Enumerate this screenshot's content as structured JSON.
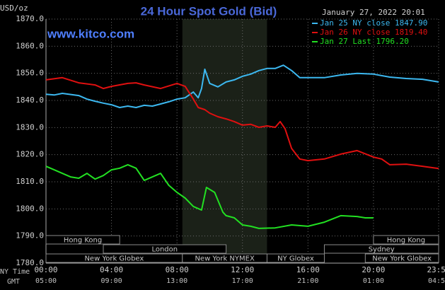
{
  "chart_data": {
    "type": "line",
    "title": "24 Hour Spot Gold (Bid)",
    "y_label": "USD/oz",
    "site": "www.kitco.com",
    "timestamp": "January 27, 2022 20:01",
    "x_label": "NY Time",
    "x2_label": "GMT",
    "xlim": [
      0,
      23.98
    ],
    "xticks": [
      {
        "value": 0,
        "label": "00:00"
      },
      {
        "value": 4,
        "label": "04:00"
      },
      {
        "value": 8,
        "label": "08:00"
      },
      {
        "value": 12,
        "label": "12:00"
      },
      {
        "value": 16,
        "label": "16:00"
      },
      {
        "value": 20,
        "label": "20:00"
      },
      {
        "value": 23.98,
        "label": "23:59"
      }
    ],
    "x2ticks": [
      {
        "value": 0,
        "label": "05:00"
      },
      {
        "value": 4,
        "label": "09:00"
      },
      {
        "value": 8,
        "label": "13:00"
      },
      {
        "value": 12,
        "label": "17:00"
      },
      {
        "value": 16,
        "label": "21:00"
      },
      {
        "value": 20,
        "label": "01:00"
      },
      {
        "value": 23.98,
        "label": "04:59"
      }
    ],
    "ylim": [
      1780,
      1870
    ],
    "yticks": [
      {
        "value": 1780,
        "label": "1780.0"
      },
      {
        "value": 1790,
        "label": "1790.0"
      },
      {
        "value": 1800,
        "label": "1800.0"
      },
      {
        "value": 1810,
        "label": "1810.0"
      },
      {
        "value": 1820,
        "label": "1820.0"
      },
      {
        "value": 1830,
        "label": "1830.0"
      },
      {
        "value": 1840,
        "label": "1840.0"
      },
      {
        "value": 1850,
        "label": "1850.0"
      },
      {
        "value": 1860,
        "label": "1860.0"
      },
      {
        "value": 1870,
        "label": "1870.0"
      }
    ],
    "grid": true,
    "legend": "top-right",
    "series": [
      {
        "name": "Jan 25 NY close 1847.90",
        "color": "#3cb8f0",
        "x": [
          0,
          0.5,
          1,
          2,
          2.5,
          3,
          3.5,
          4,
          4.5,
          5,
          5.5,
          6,
          6.5,
          7,
          7.5,
          8,
          8.5,
          9,
          9.3,
          9.5,
          9.7,
          10,
          10.5,
          11,
          11.5,
          12,
          12.5,
          13,
          13.5,
          14,
          14.5,
          15,
          15.5,
          16,
          17,
          18,
          19,
          20,
          21,
          22,
          23,
          23.98
        ],
        "values": [
          1842.3,
          1842,
          1842.6,
          1841.8,
          1840.5,
          1839.7,
          1839,
          1838.4,
          1837.4,
          1837.9,
          1837.4,
          1838.2,
          1837.9,
          1838.7,
          1839.5,
          1840.5,
          1841,
          1843.1,
          1841,
          1844.4,
          1851.5,
          1846.3,
          1845,
          1846.8,
          1847.6,
          1848.9,
          1849.7,
          1851,
          1851.8,
          1851.8,
          1853,
          1851,
          1848.4,
          1848.4,
          1848.4,
          1849.4,
          1850,
          1849.7,
          1848.6,
          1848.1,
          1847.8,
          1846.8
        ]
      },
      {
        "name": "Jan 26 NY close 1819.40",
        "color": "#e01010",
        "x": [
          0,
          1,
          2,
          3,
          3.5,
          4,
          5,
          5.5,
          6,
          7,
          8,
          8.5,
          9,
          9.3,
          9.7,
          10,
          10.5,
          11,
          11.5,
          12,
          12.5,
          13,
          13.5,
          14,
          14.3,
          14.6,
          15,
          15.5,
          16,
          17,
          18,
          19,
          20,
          20.5,
          21,
          22,
          23,
          23.98
        ],
        "values": [
          1847.6,
          1848.4,
          1846.5,
          1845.7,
          1844.4,
          1845.2,
          1846.3,
          1846.5,
          1845.7,
          1844.4,
          1846.3,
          1845.2,
          1840.5,
          1837.4,
          1836.6,
          1835.3,
          1834,
          1833.2,
          1832.2,
          1830.9,
          1831.2,
          1830.1,
          1830.6,
          1830.1,
          1832.2,
          1829.6,
          1822.3,
          1818.4,
          1817.8,
          1818.4,
          1820.2,
          1821.5,
          1819.1,
          1818.4,
          1816.3,
          1816.5,
          1815.7,
          1814.9
        ]
      },
      {
        "name": "Jan 27 Last 1796.20",
        "color": "#22e022",
        "x": [
          0,
          0.5,
          1,
          1.5,
          2,
          2.5,
          3,
          3.5,
          4,
          4.5,
          5,
          5.5,
          6,
          6.5,
          7,
          7.5,
          8,
          8.5,
          9,
          9.5,
          9.8,
          10.3,
          10.8,
          11,
          11.5,
          12,
          12.5,
          13,
          14,
          15,
          16,
          17,
          18,
          19,
          19.5,
          20
        ],
        "values": [
          1815.7,
          1814.4,
          1813.1,
          1811.8,
          1811.3,
          1813.1,
          1811,
          1812.3,
          1814.4,
          1815,
          1816.3,
          1815,
          1810.5,
          1811.8,
          1813.1,
          1808.7,
          1806.1,
          1804,
          1800.9,
          1799.6,
          1807.9,
          1806.1,
          1798.8,
          1797.5,
          1796.7,
          1794.1,
          1793.6,
          1792.8,
          1793,
          1794.1,
          1793.6,
          1795.1,
          1797.5,
          1797.2,
          1796.7,
          1796.7
        ]
      }
    ],
    "highlight_session": 1,
    "session_rows": [
      [
        {
          "label": "Hong Kong",
          "x": [
            0,
            4.5
          ]
        },
        {
          "label": "Hong Kong",
          "x": [
            20,
            23.98
          ]
        }
      ],
      [
        {
          "label": "London",
          "x": [
            3.5,
            11
          ]
        },
        {
          "label": "Sydney",
          "x": [
            17,
            23.98
          ]
        }
      ],
      [
        {
          "label": "New York Globex",
          "x": [
            0,
            8.33
          ]
        },
        {
          "label": "New York NYMEX",
          "x": [
            8.33,
            13.5
          ]
        },
        {
          "label": "NY Globex",
          "x": [
            13.5,
            17
          ]
        },
        {
          "label": "New York Globex",
          "x": [
            19.5,
            23.98
          ]
        }
      ]
    ]
  }
}
